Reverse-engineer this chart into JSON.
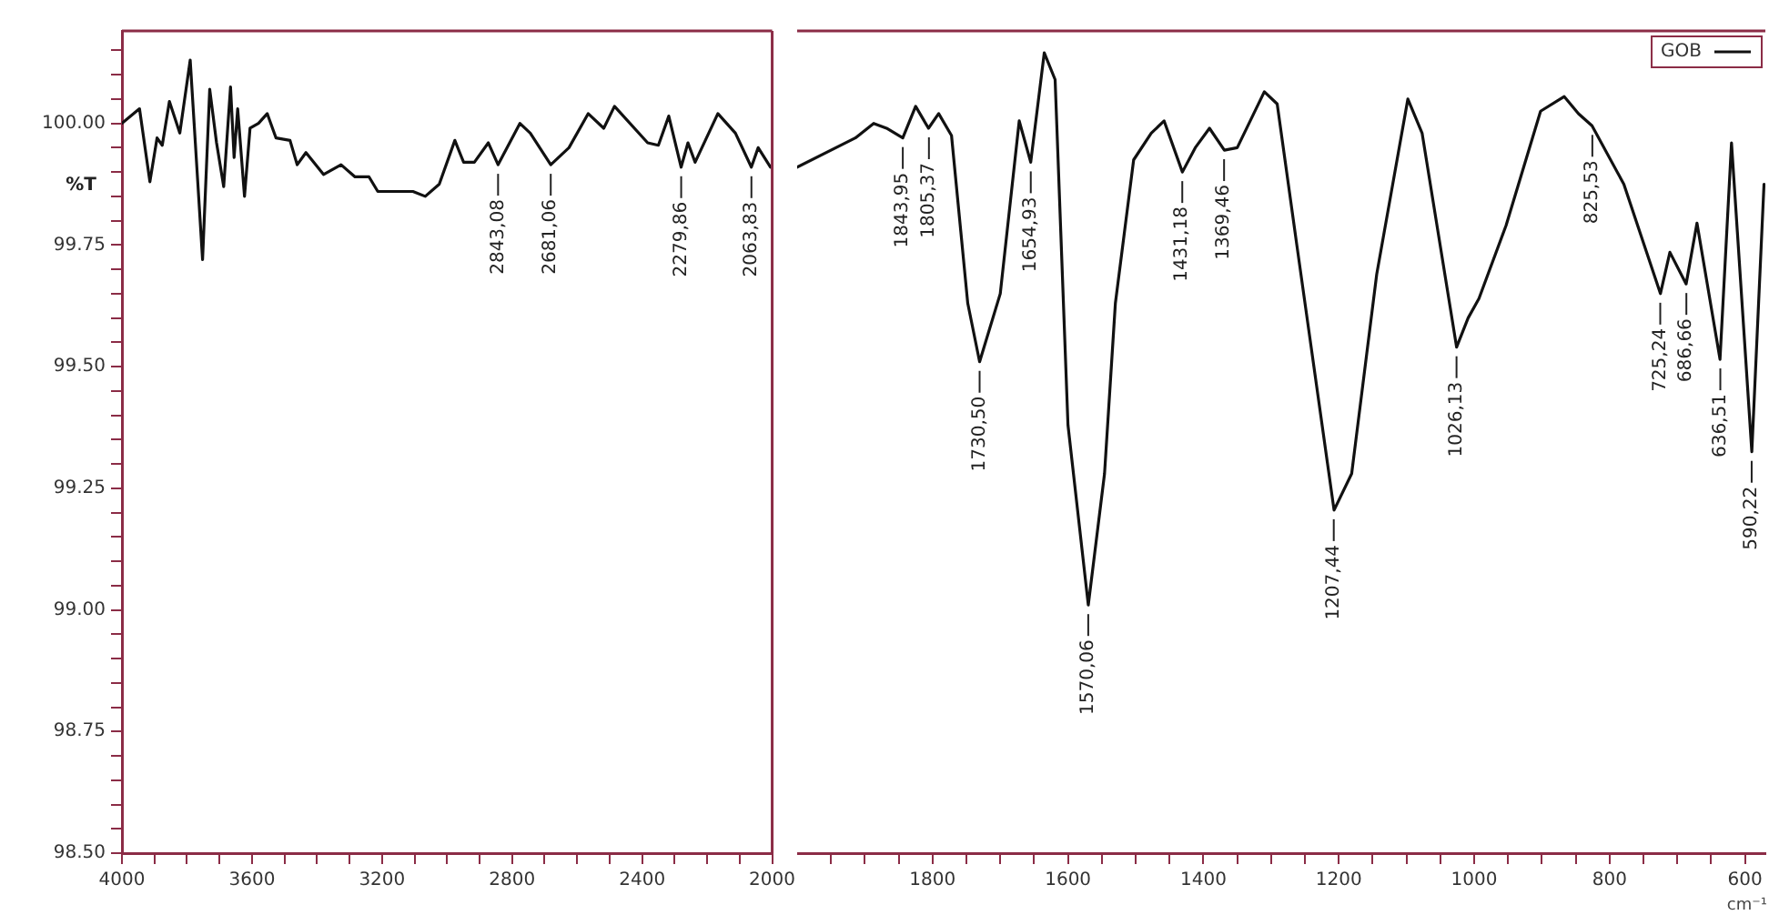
{
  "chart_data": [
    {
      "type": "line",
      "ylabel": "%T",
      "xlim": [
        4000,
        2000
      ],
      "ylim": [
        98.5,
        100.19
      ],
      "xticks": [
        4000,
        {
          "value": 3900,
          "label": null
        },
        {
          "value": 3800,
          "label": null
        },
        {
          "value": 3700,
          "label": null
        },
        3600,
        {
          "value": 3500,
          "label": null
        },
        {
          "value": 3400,
          "label": null
        },
        {
          "value": 3300,
          "label": null
        },
        3200,
        {
          "value": 3100,
          "label": null
        },
        {
          "value": 3000,
          "label": null
        },
        {
          "value": 2900,
          "label": null
        },
        2800,
        {
          "value": 2700,
          "label": null
        },
        {
          "value": 2600,
          "label": null
        },
        {
          "value": 2500,
          "label": null
        },
        2400,
        {
          "value": 2300,
          "label": null
        },
        {
          "value": 2200,
          "label": null
        },
        {
          "value": 2100,
          "label": null
        },
        2000
      ],
      "yticks": [
        {
          "value": 98.5,
          "label": "98.50"
        },
        {
          "value": 98.55,
          "label": null
        },
        {
          "value": 98.6,
          "label": null
        },
        {
          "value": 98.65,
          "label": null
        },
        {
          "value": 98.7,
          "label": null
        },
        {
          "value": 98.75,
          "label": "98.75"
        },
        {
          "value": 98.8,
          "label": null
        },
        {
          "value": 98.85,
          "label": null
        },
        {
          "value": 98.9,
          "label": null
        },
        {
          "value": 98.95,
          "label": null
        },
        {
          "value": 99,
          "label": "99.00"
        },
        {
          "value": 99.05,
          "label": null
        },
        {
          "value": 99.1,
          "label": null
        },
        {
          "value": 99.15,
          "label": null
        },
        {
          "value": 99.2,
          "label": null
        },
        {
          "value": 99.25,
          "label": "99.25"
        },
        {
          "value": 99.3,
          "label": null
        },
        {
          "value": 99.35,
          "label": null
        },
        {
          "value": 99.4,
          "label": null
        },
        {
          "value": 99.45,
          "label": null
        },
        {
          "value": 99.5,
          "label": "99.50"
        },
        {
          "value": 99.55,
          "label": null
        },
        {
          "value": 99.6,
          "label": null
        },
        {
          "value": 99.65,
          "label": null
        },
        {
          "value": 99.7,
          "label": null
        },
        {
          "value": 99.75,
          "label": "99.75"
        },
        {
          "value": 99.8,
          "label": null
        },
        {
          "value": 99.85,
          "label": null
        },
        {
          "value": 99.9,
          "label": null
        },
        {
          "value": 99.95,
          "label": null
        },
        {
          "value": 100,
          "label": "100.00"
        },
        {
          "value": 100.05,
          "label": null
        },
        {
          "value": 100.1,
          "label": null
        },
        {
          "value": 100.15,
          "label": null
        }
      ],
      "grid": false,
      "marker": "none",
      "line_style": "solid",
      "series": [
        {
          "color": "#111111",
          "x": [
            4000,
            3946,
            3914,
            3892,
            3876,
            3854,
            3822,
            3790,
            3752,
            3730,
            3709,
            3687,
            3666,
            3655,
            3644,
            3623,
            3606,
            3580,
            3553,
            3526,
            3483,
            3461,
            3434,
            3380,
            3326,
            3283,
            3240,
            3213,
            3105,
            3067,
            3024,
            2976,
            2949,
            2916,
            2873,
            2843,
            2776,
            2744,
            2681,
            2625,
            2566,
            2518,
            2485,
            2383,
            2350,
            2318,
            2280,
            2259,
            2237,
            2167,
            2113,
            2064,
            2043,
            2005,
            2000
          ],
          "values": [
            100.0,
            100.03,
            99.88,
            99.97,
            99.955,
            100.045,
            99.98,
            100.13,
            99.72,
            100.07,
            99.96,
            99.87,
            100.075,
            99.93,
            100.03,
            99.85,
            99.99,
            100.0,
            100.02,
            99.97,
            99.965,
            99.915,
            99.94,
            99.895,
            99.915,
            99.89,
            99.89,
            99.86,
            99.86,
            99.85,
            99.875,
            99.965,
            99.92,
            99.92,
            99.96,
            99.915,
            100.0,
            99.98,
            99.915,
            99.95,
            100.02,
            99.99,
            100.035,
            99.96,
            99.955,
            100.015,
            99.91,
            99.96,
            99.92,
            100.02,
            99.98,
            99.91,
            99.95,
            99.91,
            99.91
          ]
        }
      ],
      "annotations": [
        {
          "text": "2843,08",
          "x": 2843.08,
          "y": 99.915
        },
        {
          "text": "2681,06",
          "x": 2681.06,
          "y": 99.915
        },
        {
          "text": "2279,86",
          "x": 2279.86,
          "y": 99.91
        },
        {
          "text": "2063,83",
          "x": 2063.83,
          "y": 99.91
        }
      ]
    },
    {
      "type": "line",
      "xlabel": "cm⁻¹",
      "xlim": [
        2000,
        570
      ],
      "ylim": [
        98.5,
        100.19
      ],
      "tick_labels": "x",
      "xticks": [
        {
          "value": 1950,
          "label": null
        },
        {
          "value": 1900,
          "label": null
        },
        {
          "value": 1850,
          "label": null
        },
        1800,
        {
          "value": 1750,
          "label": null
        },
        {
          "value": 1700,
          "label": null
        },
        {
          "value": 1650,
          "label": null
        },
        1600,
        {
          "value": 1550,
          "label": null
        },
        {
          "value": 1500,
          "label": null
        },
        {
          "value": 1450,
          "label": null
        },
        1400,
        {
          "value": 1350,
          "label": null
        },
        {
          "value": 1300,
          "label": null
        },
        {
          "value": 1250,
          "label": null
        },
        1200,
        {
          "value": 1150,
          "label": null
        },
        {
          "value": 1100,
          "label": null
        },
        {
          "value": 1050,
          "label": null
        },
        1000,
        {
          "value": 950,
          "label": null
        },
        {
          "value": 900,
          "label": null
        },
        {
          "value": 850,
          "label": null
        },
        800,
        {
          "value": 750,
          "label": null
        },
        {
          "value": 700,
          "label": null
        },
        {
          "value": 650,
          "label": null
        },
        600
      ],
      "grid": false,
      "marker": "none",
      "line_style": "solid",
      "legend": "top right",
      "series": [
        {
          "name": "GOB",
          "color": "#111111",
          "x": [
            2000,
            1914,
            1887,
            1868,
            1844,
            1825,
            1806,
            1791,
            1772,
            1748,
            1730.5,
            1700,
            1672,
            1655,
            1635,
            1619,
            1600,
            1570,
            1546,
            1530,
            1503,
            1477,
            1458,
            1431,
            1412,
            1391,
            1369,
            1350,
            1310,
            1291,
            1262,
            1207,
            1181,
            1144,
            1098,
            1077,
            1026,
            1009,
            993,
            953,
            902,
            867,
            846,
            826,
            779,
            725,
            711,
            687,
            671,
            637,
            620,
            590,
            572
          ],
          "values": [
            99.91,
            99.97,
            100.0,
            99.99,
            99.97,
            100.035,
            99.99,
            100.02,
            99.975,
            99.63,
            99.51,
            99.65,
            100.005,
            99.92,
            100.145,
            100.09,
            99.38,
            99.01,
            99.28,
            99.63,
            99.925,
            99.98,
            100.005,
            99.9,
            99.95,
            99.99,
            99.945,
            99.95,
            100.065,
            100.04,
            99.75,
            99.205,
            99.28,
            99.69,
            100.05,
            99.98,
            99.54,
            99.6,
            99.64,
            99.79,
            100.025,
            100.055,
            100.02,
            99.995,
            99.875,
            99.65,
            99.735,
            99.67,
            99.795,
            99.515,
            99.96,
            99.325,
            99.875
          ]
        }
      ],
      "annotations": [
        {
          "text": "1843,95",
          "x": 1843.95,
          "y": 99.97
        },
        {
          "text": "1805,37",
          "x": 1805.37,
          "y": 99.99
        },
        {
          "text": "1730,50",
          "x": 1730.5,
          "y": 99.51
        },
        {
          "text": "1654,93",
          "x": 1654.93,
          "y": 99.92
        },
        {
          "text": "1570,06",
          "x": 1570.06,
          "y": 99.01
        },
        {
          "text": "1431,18",
          "x": 1431.18,
          "y": 99.9
        },
        {
          "text": "1369,46",
          "x": 1369.46,
          "y": 99.945
        },
        {
          "text": "1207,44",
          "x": 1207.44,
          "y": 99.205
        },
        {
          "text": "1026,13",
          "x": 1026.13,
          "y": 99.54
        },
        {
          "text": "825,53",
          "x": 825.53,
          "y": 99.995
        },
        {
          "text": "725,24",
          "x": 725.24,
          "y": 99.65
        },
        {
          "text": "686,66",
          "x": 686.66,
          "y": 99.67
        },
        {
          "text": "636,51",
          "x": 636.51,
          "y": 99.515
        },
        {
          "text": "590,22",
          "x": 590.22,
          "y": 99.325
        }
      ]
    }
  ]
}
